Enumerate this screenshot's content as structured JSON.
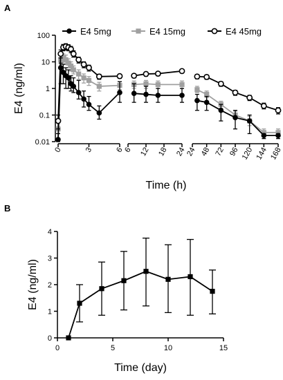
{
  "panels": [
    {
      "letter": "A"
    },
    {
      "letter": "B"
    }
  ],
  "chart_data": [
    {
      "type": "line",
      "panel": "A",
      "xlabel": "Time (h)",
      "ylabel": "E4 (ng/ml)",
      "y_scale": "log",
      "ylim": [
        0.01,
        100
      ],
      "y_ticks": [
        "0.01",
        "0.1",
        "1",
        "10",
        "100"
      ],
      "legend_position": "top",
      "segments": [
        {
          "xlim": [
            0,
            6
          ],
          "ticks": [
            "0",
            "3",
            "6"
          ]
        },
        {
          "xlim": [
            6,
            24
          ],
          "ticks": [
            "6",
            "12",
            "18",
            "24"
          ]
        },
        {
          "xlim": [
            24,
            168
          ],
          "ticks": [
            "24",
            "48",
            "72",
            "96",
            "120",
            "144",
            "168"
          ]
        }
      ],
      "series": [
        {
          "name": "E4 5mg",
          "color": "#000000",
          "marker": "filled-circle",
          "points": [
            {
              "x": 0,
              "y": 0.012,
              "lo": 0.01,
              "hi": 0.02
            },
            {
              "x": 0.25,
              "y": 6,
              "lo": 1.5,
              "hi": 9
            },
            {
              "x": 0.5,
              "y": 4,
              "lo": 1.5,
              "hi": 8
            },
            {
              "x": 0.75,
              "y": 3,
              "lo": 1.0,
              "hi": 6
            },
            {
              "x": 1,
              "y": 2.5,
              "lo": 1.0,
              "hi": 5
            },
            {
              "x": 1.25,
              "y": 1.5,
              "lo": 0.8,
              "hi": 3
            },
            {
              "x": 1.5,
              "y": 1.2,
              "lo": 0.7,
              "hi": 2.5
            },
            {
              "x": 2,
              "y": 0.7,
              "lo": 0.4,
              "hi": 2
            },
            {
              "x": 2.5,
              "y": 0.4,
              "lo": 0.2,
              "hi": 0.8
            },
            {
              "x": 3,
              "y": 0.25,
              "lo": 0.15,
              "hi": 0.5
            },
            {
              "x": 4,
              "y": 0.12,
              "lo": 0.07,
              "hi": 0.22
            },
            {
              "x": 6,
              "y": 0.7,
              "lo": 0.3,
              "hi": 1.8
            },
            {
              "x": 8,
              "y": 0.65,
              "lo": 0.3,
              "hi": 1.5
            },
            {
              "x": 12,
              "y": 0.6,
              "lo": 0.3,
              "hi": 1.2
            },
            {
              "x": 16,
              "y": 0.55,
              "lo": 0.3,
              "hi": 1.0
            },
            {
              "x": 24,
              "y": 0.55,
              "lo": 0.3,
              "hi": 1.0
            },
            {
              "x": 32,
              "y": 0.35,
              "lo": 0.15,
              "hi": 0.6
            },
            {
              "x": 48,
              "y": 0.3,
              "lo": 0.15,
              "hi": 0.5
            },
            {
              "x": 72,
              "y": 0.15,
              "lo": 0.06,
              "hi": 0.25
            },
            {
              "x": 96,
              "y": 0.08,
              "lo": 0.03,
              "hi": 0.15
            },
            {
              "x": 120,
              "y": 0.06,
              "lo": 0.02,
              "hi": 0.1
            },
            {
              "x": 144,
              "y": 0.017,
              "lo": 0.013,
              "hi": 0.02
            },
            {
              "x": 168,
              "y": 0.017,
              "lo": 0.013,
              "hi": 0.02
            }
          ]
        },
        {
          "name": "E4 15mg",
          "color": "#a0a0a0",
          "marker": "filled-square",
          "points": [
            {
              "x": 0,
              "y": 0.03,
              "lo": 0.02,
              "hi": 0.05
            },
            {
              "x": 0.25,
              "y": 12,
              "lo": 7,
              "hi": 18
            },
            {
              "x": 0.5,
              "y": 14,
              "lo": 9,
              "hi": 20
            },
            {
              "x": 0.75,
              "y": 12,
              "lo": 8,
              "hi": 18
            },
            {
              "x": 1,
              "y": 9,
              "lo": 6,
              "hi": 13
            },
            {
              "x": 1.25,
              "y": 7,
              "lo": 4.5,
              "hi": 10
            },
            {
              "x": 1.5,
              "y": 5,
              "lo": 3.5,
              "hi": 7
            },
            {
              "x": 2,
              "y": 3.5,
              "lo": 2.2,
              "hi": 5
            },
            {
              "x": 2.5,
              "y": 2.5,
              "lo": 1.6,
              "hi": 3.5
            },
            {
              "x": 3,
              "y": 2.0,
              "lo": 1.3,
              "hi": 2.8
            },
            {
              "x": 4,
              "y": 1.2,
              "lo": 0.8,
              "hi": 1.7
            },
            {
              "x": 6,
              "y": 1.3,
              "lo": 0.9,
              "hi": 1.8
            },
            {
              "x": 8,
              "y": 1.4,
              "lo": 1.0,
              "hi": 1.9
            },
            {
              "x": 12,
              "y": 1.5,
              "lo": 1.0,
              "hi": 2.0
            },
            {
              "x": 16,
              "y": 1.4,
              "lo": 1.0,
              "hi": 1.9
            },
            {
              "x": 24,
              "y": 1.4,
              "lo": 1.0,
              "hi": 1.9
            },
            {
              "x": 32,
              "y": 0.9,
              "lo": 0.7,
              "hi": 1.2
            },
            {
              "x": 48,
              "y": 0.6,
              "lo": 0.45,
              "hi": 0.8
            },
            {
              "x": 72,
              "y": 0.25,
              "lo": 0.18,
              "hi": 0.33
            },
            {
              "x": 96,
              "y": 0.1,
              "lo": 0.07,
              "hi": 0.14
            },
            {
              "x": 120,
              "y": 0.06,
              "lo": 0.04,
              "hi": 0.09
            },
            {
              "x": 144,
              "y": 0.022,
              "lo": 0.017,
              "hi": 0.03
            },
            {
              "x": 168,
              "y": 0.022,
              "lo": 0.017,
              "hi": 0.03
            }
          ]
        },
        {
          "name": "E4 45mg",
          "color": "#000000",
          "marker": "open-circle",
          "points": [
            {
              "x": 0,
              "y": 0.06,
              "lo": 0.03,
              "hi": 0.1
            },
            {
              "x": 0.25,
              "y": 20,
              "lo": 14,
              "hi": 28
            },
            {
              "x": 0.5,
              "y": 35,
              "lo": 26,
              "hi": 45
            },
            {
              "x": 0.75,
              "y": 38,
              "lo": 28,
              "hi": 48
            },
            {
              "x": 1,
              "y": 35,
              "lo": 26,
              "hi": 44
            },
            {
              "x": 1.25,
              "y": 30,
              "lo": 22,
              "hi": 38
            },
            {
              "x": 1.5,
              "y": 20,
              "lo": 15,
              "hi": 26
            },
            {
              "x": 2,
              "y": 12,
              "lo": 9,
              "hi": 15
            },
            {
              "x": 2.5,
              "y": 8,
              "lo": 6,
              "hi": 10
            },
            {
              "x": 3,
              "y": 6,
              "lo": 4.5,
              "hi": 7.5
            },
            {
              "x": 4,
              "y": 2.8,
              "lo": 2.2,
              "hi": 3.4
            },
            {
              "x": 6,
              "y": 2.9,
              "lo": 2.4,
              "hi": 3.4
            },
            {
              "x": 8,
              "y": 3.0,
              "lo": 2.5,
              "hi": 3.5
            },
            {
              "x": 12,
              "y": 3.5,
              "lo": 2.9,
              "hi": 4.1
            },
            {
              "x": 16,
              "y": 3.6,
              "lo": 3.0,
              "hi": 4.2
            },
            {
              "x": 24,
              "y": 4.5,
              "lo": 3.8,
              "hi": 5.2
            },
            {
              "x": 32,
              "y": 2.8,
              "lo": 2.3,
              "hi": 3.3
            },
            {
              "x": 48,
              "y": 2.7,
              "lo": 2.2,
              "hi": 3.2
            },
            {
              "x": 72,
              "y": 1.5,
              "lo": 1.2,
              "hi": 1.8
            },
            {
              "x": 96,
              "y": 0.7,
              "lo": 0.55,
              "hi": 0.85
            },
            {
              "x": 120,
              "y": 0.45,
              "lo": 0.35,
              "hi": 0.55
            },
            {
              "x": 144,
              "y": 0.22,
              "lo": 0.17,
              "hi": 0.28
            },
            {
              "x": 168,
              "y": 0.15,
              "lo": 0.11,
              "hi": 0.19
            }
          ]
        }
      ]
    },
    {
      "type": "line",
      "panel": "B",
      "xlabel": "Time (day)",
      "ylabel": "E4 (ng/ml)",
      "xlim": [
        0,
        15
      ],
      "ylim": [
        0,
        4
      ],
      "x_ticks": [
        "0",
        "5",
        "10",
        "15"
      ],
      "y_ticks": [
        "0",
        "1",
        "2",
        "3",
        "4"
      ],
      "series": [
        {
          "color": "#000000",
          "marker": "filled-square",
          "points": [
            {
              "x": 1,
              "y": 0,
              "lo": 0,
              "hi": 0
            },
            {
              "x": 2,
              "y": 1.3,
              "lo": 0.6,
              "hi": 2.0
            },
            {
              "x": 4,
              "y": 1.85,
              "lo": 0.85,
              "hi": 2.85
            },
            {
              "x": 6,
              "y": 2.15,
              "lo": 1.05,
              "hi": 3.25
            },
            {
              "x": 8,
              "y": 2.5,
              "lo": 1.2,
              "hi": 3.75
            },
            {
              "x": 10,
              "y": 2.2,
              "lo": 0.95,
              "hi": 3.5
            },
            {
              "x": 12,
              "y": 2.3,
              "lo": 0.85,
              "hi": 3.7
            },
            {
              "x": 14,
              "y": 1.75,
              "lo": 0.9,
              "hi": 2.55
            }
          ]
        }
      ]
    }
  ]
}
